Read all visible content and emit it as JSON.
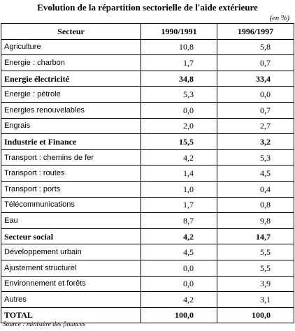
{
  "title": "Evolution de la répartition sectorielle de l'aide extérieure",
  "unit_note": "(en %)",
  "table": {
    "headers": [
      "Secteur",
      "1990/1991",
      "1996/1997"
    ],
    "rows": [
      {
        "label": "Agriculture",
        "v1": "10,8",
        "v2": "5,8",
        "bold": false
      },
      {
        "label": "Energie : charbon",
        "v1": "1,7",
        "v2": "0,7",
        "bold": false
      },
      {
        "label": "Energie électricité",
        "v1": "34,8",
        "v2": "33,4",
        "bold": true
      },
      {
        "label": "Energie : pétrole",
        "v1": "5,3",
        "v2": "0,0",
        "bold": false
      },
      {
        "label": "Energies renouvelables",
        "v1": "0,0",
        "v2": "0,7",
        "bold": false
      },
      {
        "label": "Engrais",
        "v1": "2,0",
        "v2": "2,7",
        "bold": false
      },
      {
        "label": "Industrie et Finance",
        "v1": "15,5",
        "v2": "3,2",
        "bold": true
      },
      {
        "label": "Transport : chemins de fer",
        "v1": "4,2",
        "v2": "5,3",
        "bold": false
      },
      {
        "label": "Transport : routes",
        "v1": "1,4",
        "v2": "4,5",
        "bold": false
      },
      {
        "label": "Transport : ports",
        "v1": "1,0",
        "v2": "0,4",
        "bold": false
      },
      {
        "label": "Télécommunications",
        "v1": "1,7",
        "v2": "0,8",
        "bold": false
      },
      {
        "label": "Eau",
        "v1": "8,7",
        "v2": "9,8",
        "bold": false
      },
      {
        "label": "Secteur social",
        "v1": "4,2",
        "v2": "14,7",
        "bold": true
      },
      {
        "label": "Développement urbain",
        "v1": "4,5",
        "v2": "5,5",
        "bold": false
      },
      {
        "label": "Ajustement structurel",
        "v1": "0,0",
        "v2": "5,5",
        "bold": false
      },
      {
        "label": "Environnement et forêts",
        "v1": "0,0",
        "v2": "3,9",
        "bold": false
      },
      {
        "label": "Autres",
        "v1": "4,2",
        "v2": "3,1",
        "bold": false
      },
      {
        "label": "TOTAL",
        "v1": "100,0",
        "v2": "100,0",
        "bold": true
      }
    ]
  },
  "source": "Source : ministère des finances"
}
